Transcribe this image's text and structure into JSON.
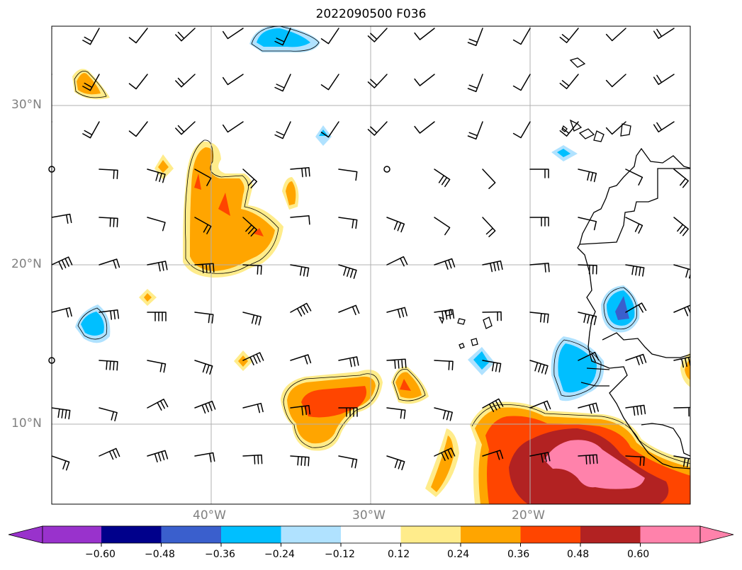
{
  "title": "2022090500 F036",
  "axes": {
    "lat_labels": [
      "30°N",
      "20°N",
      "10°N"
    ],
    "lon_labels": [
      "40°W",
      "30°W",
      "20°W"
    ]
  },
  "colorbar": {
    "ticks": [
      "−0.60",
      "−0.48",
      "−0.36",
      "−0.24",
      "−0.12",
      "0.12",
      "0.24",
      "0.36",
      "0.48",
      "0.60"
    ],
    "colors": [
      "#9932CC",
      "#00008B",
      "#3A5FCD",
      "#00BFFF",
      "#B0E2FF",
      "#FFFFFF",
      "#FFEC8B",
      "#FFA500",
      "#FF4500",
      "#B22222",
      "#FF82AB"
    ],
    "extend": "both"
  },
  "map": {
    "lon_range": [
      -50,
      -10
    ],
    "lat_range": [
      5,
      35
    ],
    "gridlines": true,
    "wind_barbs": true,
    "coastlines": true
  }
}
